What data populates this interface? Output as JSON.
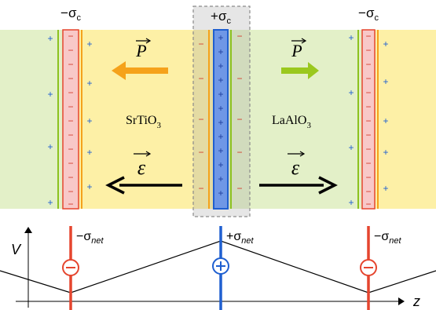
{
  "labels": {
    "sigma_left": "−σc",
    "sigma_center": "+σc",
    "sigma_right": "−σc",
    "polarization": "P",
    "field": "ε",
    "material_left": "SrTiO3",
    "material_right": "LaAlO3",
    "potential_axis": "V",
    "position_axis": "z",
    "net_left": "−σnet",
    "net_center": "+σnet",
    "net_right": "−σnet",
    "plus": "+",
    "minus": "−"
  },
  "colors": {
    "green_region": "#e3f0c8",
    "yellow_region": "#fdf0a6",
    "red_sheet": "#f8c8c8",
    "red_line": "#e5452e",
    "blue_sheet": "#4a7fd8",
    "blue_line": "#1f5fd0",
    "green_line": "#8cc21f",
    "orange_arrow": "#f5a21b",
    "green_arrow": "#9ac81e",
    "plus_blue": "#1f5fd0",
    "minus_red": "#d23a2a",
    "box_dashed": "#8a8a8a",
    "box_fill": "#d8d8d8"
  }
}
